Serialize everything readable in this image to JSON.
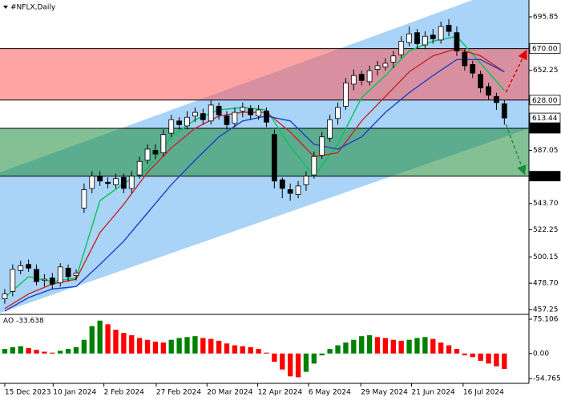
{
  "symbol": "#NFLX,Daily",
  "chart_data": [
    {
      "type": "candlestick",
      "xlim": [
        -0.6,
        66.1
      ],
      "ylim": [
        453.3,
        709.6
      ],
      "xticks": [
        {
          "value": 0,
          "label": "15 Dec 2023"
        },
        {
          "value": 6.1,
          "label": "10 Jan 2024"
        },
        {
          "value": 12.5,
          "label": "2 Feb 2024"
        },
        {
          "value": 19.1,
          "label": "27 Feb 2024"
        },
        {
          "value": 25.5,
          "label": "20 Mar 2024"
        },
        {
          "value": 31.9,
          "label": "12 Apr 2024"
        },
        {
          "value": 38.3,
          "label": "6 May 2024"
        },
        {
          "value": 44.9,
          "label": "29 May 2024"
        },
        {
          "value": 51.3,
          "label": "21 Jun 2024"
        },
        {
          "value": 57.8,
          "label": "16 Jul 2024"
        }
      ],
      "yticks": [
        695.85,
        652.25,
        587.05,
        {
          "value": 543.7,
          "label": "543.70"
        },
        522.25,
        500.15,
        {
          "value": 478.7,
          "label": "478.70"
        },
        457.25
      ],
      "open": [
        466,
        472,
        489,
        494,
        490,
        481,
        483,
        479,
        491,
        485,
        540,
        556,
        566,
        561,
        559,
        565,
        556,
        567,
        579,
        587,
        585,
        601,
        611,
        607,
        615,
        617,
        611,
        623,
        615,
        609,
        619,
        621,
        615,
        619,
        600,
        563,
        555,
        551,
        559,
        567,
        583,
        597,
        613,
        623,
        641,
        649,
        643,
        653,
        655,
        659,
        665,
        675,
        683,
        673,
        681,
        677,
        689,
        683,
        667,
        657,
        649,
        639,
        631,
        625
      ],
      "high": [
        474,
        494,
        497,
        498,
        494,
        486,
        487,
        495,
        494,
        490,
        560,
        570,
        570,
        565,
        568,
        568,
        570,
        582,
        592,
        592,
        604,
        616,
        614,
        619,
        622,
        621,
        628,
        626,
        619,
        622,
        626,
        624,
        624,
        622,
        604,
        565,
        560,
        562,
        570,
        586,
        602,
        616,
        626,
        646,
        653,
        652,
        656,
        660,
        662,
        668,
        680,
        688,
        686,
        684,
        686,
        692,
        694,
        688,
        670,
        660,
        652,
        642,
        634,
        628
      ],
      "low": [
        462,
        468,
        486,
        488,
        477,
        476,
        474,
        476,
        480,
        481,
        536,
        552,
        558,
        556,
        556,
        552,
        552,
        564,
        576,
        580,
        582,
        598,
        604,
        604,
        610,
        608,
        608,
        612,
        604,
        606,
        614,
        612,
        612,
        606,
        556,
        548,
        546,
        548,
        554,
        564,
        580,
        594,
        608,
        620,
        636,
        640,
        640,
        648,
        652,
        654,
        662,
        672,
        670,
        670,
        674,
        674,
        680,
        664,
        652,
        646,
        634,
        628,
        620,
        608
      ],
      "close": [
        470,
        490,
        493,
        491,
        480,
        482,
        478,
        492,
        484,
        487,
        555,
        566,
        562,
        560,
        564,
        556,
        566,
        578,
        588,
        584,
        600,
        612,
        608,
        614,
        618,
        612,
        624,
        616,
        608,
        618,
        622,
        616,
        620,
        610,
        562,
        556,
        552,
        558,
        566,
        582,
        598,
        612,
        622,
        642,
        648,
        644,
        652,
        656,
        658,
        664,
        676,
        682,
        674,
        680,
        678,
        688,
        684,
        668,
        656,
        650,
        638,
        632,
        626,
        613.44
      ],
      "candle_color": "#000000",
      "lines": [
        {
          "color": "#00c853",
          "x": [
            0,
            3,
            6,
            9,
            12,
            15,
            18,
            21,
            24,
            27,
            30,
            33,
            36,
            39,
            42,
            45,
            48,
            51,
            54,
            57,
            60,
            63
          ],
          "values": [
            467,
            484,
            480,
            483,
            546,
            560,
            572,
            598,
            612,
            620,
            622,
            620,
            590,
            566,
            592,
            630,
            648,
            668,
            676,
            680,
            658,
            636
          ]
        },
        {
          "color": "#c62828",
          "x": [
            0,
            3,
            6,
            9,
            12,
            15,
            18,
            21,
            24,
            27,
            30,
            33,
            36,
            39,
            42,
            45,
            48,
            51,
            54,
            57,
            60,
            63
          ],
          "values": [
            458,
            470,
            478,
            482,
            520,
            543,
            569,
            589,
            605,
            615,
            618,
            618,
            602,
            582,
            585,
            611,
            631,
            651,
            664,
            670,
            664,
            651
          ]
        },
        {
          "color": "#1e3fc8",
          "x": [
            0,
            3,
            6,
            9,
            12,
            15,
            18,
            21,
            24,
            27,
            30,
            33,
            36,
            39,
            42,
            45,
            48,
            51,
            54,
            57,
            60,
            63
          ],
          "values": [
            456,
            467,
            474,
            476,
            494,
            513,
            536,
            559,
            579,
            598,
            611,
            615,
            611,
            592,
            588,
            598,
            618,
            634,
            648,
            661,
            661,
            651
          ]
        }
      ],
      "channel": {
        "color": "#a9d3f7",
        "upper": {
          "x": [
            -0.6,
            59
          ],
          "values": [
            569,
            709.6
          ]
        },
        "lower": {
          "x": [
            12.5,
            66.1
          ],
          "values": [
            484,
            605
          ]
        }
      },
      "resistance_zone": {
        "color": "#ff5a5a",
        "levels": [
          {
            "value": 628,
            "label": "628.00"
          },
          {
            "value": 670,
            "label": "670.00"
          }
        ]
      },
      "support_zone": {
        "color": "#1e8c3c",
        "levels": [
          {
            "value": 566,
            "label": "566.00"
          },
          {
            "value": 605,
            "label": "605.00"
          }
        ]
      },
      "last_price": 613.44
    },
    {
      "type": "bar",
      "title": "AO",
      "ylim": [
        -65.3,
        83.9
      ],
      "yticks": [
        75.106,
        {
          "value": 0,
          "label": "0.00"
        },
        -54.765
      ],
      "up_color": "#008000",
      "down_color": "#ff0000",
      "values": [
        10,
        14,
        16,
        12,
        8,
        4,
        2,
        6,
        10,
        14,
        30,
        60,
        72,
        64,
        52,
        45,
        40,
        34,
        30,
        26,
        24,
        30,
        34,
        36,
        38,
        34,
        32,
        28,
        22,
        18,
        16,
        14,
        10,
        2,
        -18,
        -35,
        -50,
        -52,
        -40,
        -22,
        -4,
        10,
        18,
        24,
        30,
        38,
        40,
        36,
        34,
        30,
        28,
        30,
        34,
        36,
        32,
        24,
        18,
        10,
        -4,
        -8,
        -16,
        -22,
        -28,
        -33.638
      ]
    }
  ]
}
